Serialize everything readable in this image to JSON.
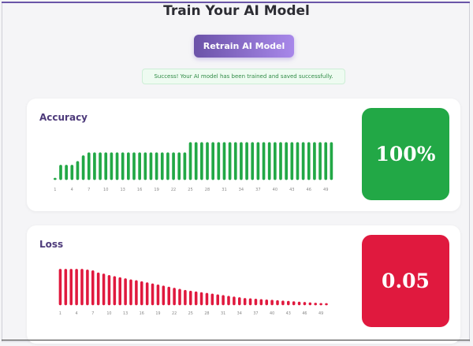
{
  "page": {
    "title": "Train Your AI Model"
  },
  "actions": {
    "retrain_label": "Retrain AI Model"
  },
  "alert": {
    "message": "Success! Your AI model has been trained and saved successfully."
  },
  "colors": {
    "accent": "#6b52a8",
    "success": "#22a846",
    "danger": "#e0193e"
  },
  "accuracy": {
    "label": "Accuracy",
    "value_display": "100%"
  },
  "loss": {
    "label": "Loss",
    "value_display": "0.05"
  },
  "chart_data": [
    {
      "type": "bar",
      "title": "Accuracy",
      "x": [
        1,
        2,
        3,
        4,
        5,
        6,
        7,
        8,
        9,
        10,
        11,
        12,
        13,
        14,
        15,
        16,
        17,
        18,
        19,
        20,
        21,
        22,
        23,
        24,
        25,
        26,
        27,
        28,
        29,
        30,
        31,
        32,
        33,
        34,
        35,
        36,
        37,
        38,
        39,
        40,
        41,
        42,
        43,
        44,
        45,
        46,
        47,
        48,
        49,
        50
      ],
      "tick_labels": [
        "1",
        "4",
        "7",
        "10",
        "13",
        "16",
        "19",
        "22",
        "25",
        "28",
        "31",
        "34",
        "37",
        "40",
        "43",
        "46",
        "49"
      ],
      "values": [
        0.05,
        0.4,
        0.4,
        0.4,
        0.5,
        0.65,
        0.73,
        0.73,
        0.73,
        0.73,
        0.73,
        0.73,
        0.73,
        0.73,
        0.73,
        0.73,
        0.73,
        0.73,
        0.73,
        0.73,
        0.73,
        0.73,
        0.73,
        0.73,
        1,
        1,
        1,
        1,
        1,
        1,
        1,
        1,
        1,
        1,
        1,
        1,
        1,
        1,
        1,
        1,
        1,
        1,
        1,
        1,
        1,
        1,
        1,
        1,
        1,
        1
      ],
      "ylim": [
        0,
        1
      ],
      "grid": false
    },
    {
      "type": "bar",
      "title": "Loss",
      "x": [
        1,
        2,
        3,
        4,
        5,
        6,
        7,
        8,
        9,
        10,
        11,
        12,
        13,
        14,
        15,
        16,
        17,
        18,
        19,
        20,
        21,
        22,
        23,
        24,
        25,
        26,
        27,
        28,
        29,
        30,
        31,
        32,
        33,
        34,
        35,
        36,
        37,
        38,
        39,
        40,
        41,
        42,
        43,
        44,
        45,
        46,
        47,
        48,
        49,
        50
      ],
      "tick_labels": [
        "1",
        "4",
        "7",
        "10",
        "13",
        "16",
        "19",
        "22",
        "25",
        "28",
        "31",
        "34",
        "37",
        "40",
        "43",
        "46",
        "49"
      ],
      "values": [
        1.0,
        1.0,
        1.0,
        1.0,
        1.0,
        0.98,
        0.96,
        0.9,
        0.87,
        0.83,
        0.8,
        0.77,
        0.74,
        0.71,
        0.69,
        0.66,
        0.63,
        0.6,
        0.57,
        0.54,
        0.51,
        0.48,
        0.45,
        0.42,
        0.4,
        0.38,
        0.36,
        0.34,
        0.32,
        0.3,
        0.28,
        0.26,
        0.24,
        0.22,
        0.2,
        0.19,
        0.18,
        0.17,
        0.16,
        0.15,
        0.14,
        0.13,
        0.12,
        0.11,
        0.1,
        0.09,
        0.08,
        0.07,
        0.06,
        0.05
      ],
      "ylim": [
        0,
        1
      ],
      "grid": false
    }
  ]
}
